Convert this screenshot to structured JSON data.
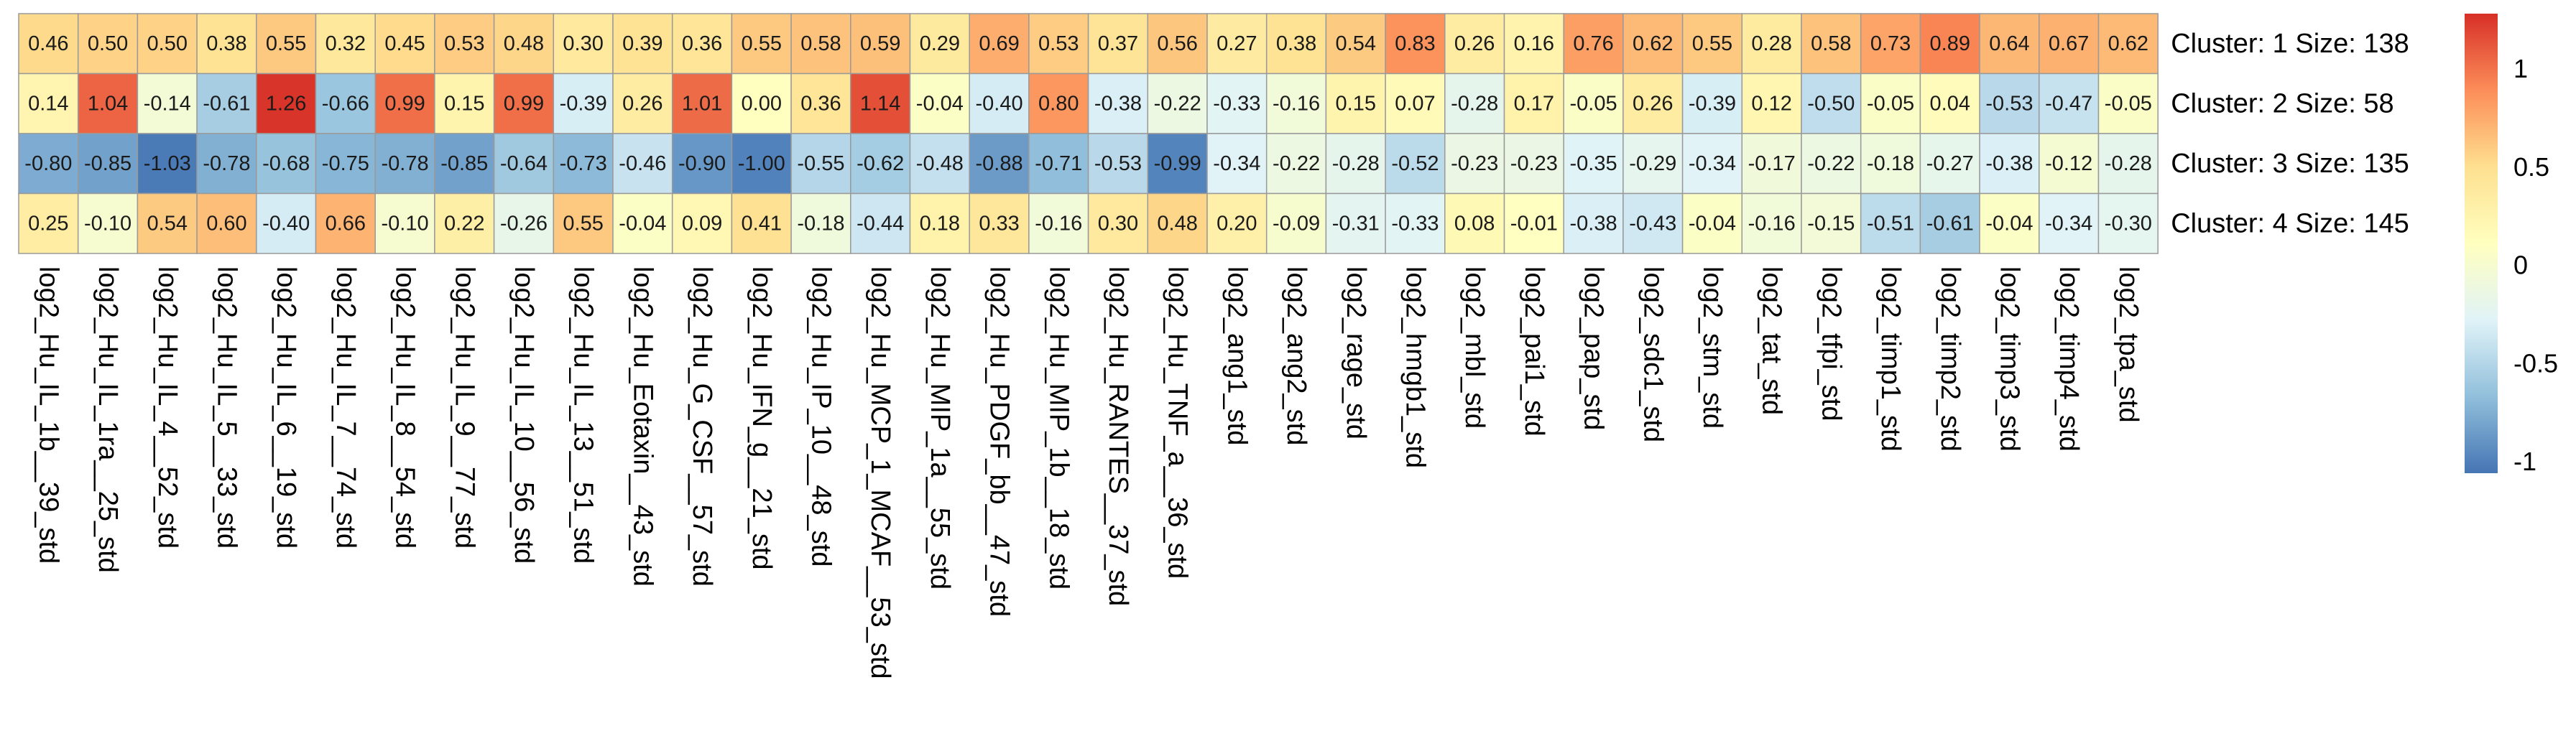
{
  "chart_data": {
    "type": "heatmap",
    "title": "",
    "rows": [
      "Cluster: 1 Size: 138",
      "Cluster: 2 Size: 58",
      "Cluster: 3 Size: 135",
      "Cluster: 4 Size: 145"
    ],
    "columns": [
      "log2_Hu_IL_1b__39_std",
      "log2_Hu_IL_1ra__25_std",
      "log2_Hu_IL_4__52_std",
      "log2_Hu_IL_5__33_std",
      "log2_Hu_IL_6__19_std",
      "log2_Hu_IL_7__74_std",
      "log2_Hu_IL_8__54_std",
      "log2_Hu_IL_9__77_std",
      "log2_Hu_IL_10__56_std",
      "log2_Hu_IL_13__51_std",
      "log2_Hu_Eotaxin__43_std",
      "log2_Hu_G_CSF__57_std",
      "log2_Hu_IFN_g__21_std",
      "log2_Hu_IP_10__48_std",
      "log2_Hu_MCP_1_MCAF__53_std",
      "log2_Hu_MIP_1a__55_std",
      "log2_Hu_PDGF_bb__47_std",
      "log2_Hu_MIP_1b__18_std",
      "log2_Hu_RANTES__37_std",
      "log2_Hu_TNF_a__36_std",
      "log2_ang1_std",
      "log2_ang2_std",
      "log2_rage_std",
      "log2_hmgb1_std",
      "log2_mbl_std",
      "log2_pai1_std",
      "log2_pap_std",
      "log2_sdc1_std",
      "log2_stm_std",
      "log2_tat_std",
      "log2_tfpi_std",
      "log2_timp1_std",
      "log2_timp2_std",
      "log2_timp3_std",
      "log2_timp4_std",
      "log2_tpa_std"
    ],
    "values": [
      [
        0.46,
        0.5,
        0.5,
        0.38,
        0.55,
        0.32,
        0.45,
        0.53,
        0.48,
        0.3,
        0.39,
        0.36,
        0.55,
        0.58,
        0.59,
        0.29,
        0.69,
        0.53,
        0.37,
        0.56,
        0.27,
        0.38,
        0.54,
        0.83,
        0.26,
        0.16,
        0.76,
        0.62,
        0.55,
        0.28,
        0.58,
        0.73,
        0.89,
        0.64,
        0.67,
        0.62
      ],
      [
        0.14,
        1.04,
        -0.14,
        -0.61,
        1.26,
        -0.66,
        0.99,
        0.15,
        0.99,
        -0.39,
        0.26,
        1.01,
        0.0,
        0.36,
        1.14,
        -0.04,
        -0.4,
        0.8,
        -0.38,
        -0.22,
        -0.33,
        -0.16,
        0.15,
        0.07,
        -0.28,
        0.17,
        -0.05,
        0.26,
        -0.39,
        0.12,
        -0.5,
        -0.05,
        0.04,
        -0.53,
        -0.47,
        -0.05
      ],
      [
        -0.8,
        -0.85,
        -1.03,
        -0.78,
        -0.68,
        -0.75,
        -0.78,
        -0.85,
        -0.64,
        -0.73,
        -0.46,
        -0.9,
        -1.0,
        -0.55,
        -0.62,
        -0.48,
        -0.88,
        -0.71,
        -0.53,
        -0.99,
        -0.34,
        -0.22,
        -0.28,
        -0.52,
        -0.23,
        -0.23,
        -0.35,
        -0.29,
        -0.34,
        -0.17,
        -0.22,
        -0.18,
        -0.27,
        -0.38,
        -0.12,
        -0.28
      ],
      [
        0.25,
        -0.1,
        0.54,
        0.6,
        -0.4,
        0.66,
        -0.1,
        0.22,
        -0.26,
        0.55,
        -0.04,
        0.09,
        0.41,
        -0.18,
        -0.44,
        0.18,
        0.33,
        -0.16,
        0.3,
        0.48,
        0.2,
        -0.09,
        -0.31,
        -0.33,
        0.08,
        -0.01,
        -0.38,
        -0.43,
        -0.04,
        -0.16,
        -0.15,
        -0.51,
        -0.61,
        -0.04,
        -0.34,
        -0.3
      ]
    ],
    "legend": {
      "placement": "right",
      "ticks": [
        "1",
        "0.5",
        "0",
        "-0.5",
        "-1"
      ],
      "range": [
        -1.06,
        1.28
      ],
      "colors": [
        "#4575b4",
        "#91bfdb",
        "#e0f3f8",
        "#ffffbf",
        "#fee090",
        "#fc8d59",
        "#d73027"
      ]
    }
  }
}
